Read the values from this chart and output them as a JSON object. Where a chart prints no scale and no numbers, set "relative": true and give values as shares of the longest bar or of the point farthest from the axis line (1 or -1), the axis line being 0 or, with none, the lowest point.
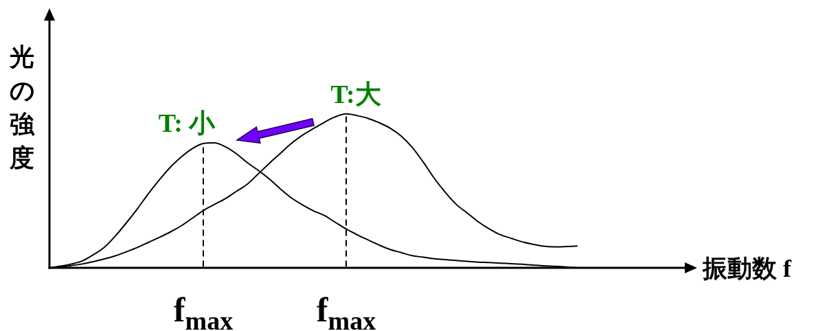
{
  "chart_data": {
    "type": "line",
    "relative": true,
    "ylabel": "光の強度",
    "xlabel": "振動数 f",
    "grid": "x",
    "categories": [
      null,
      null,
      null,
      null,
      null,
      null,
      null,
      null,
      null,
      null,
      null,
      null,
      null,
      null,
      "f$_{max}$",
      null,
      null,
      null,
      null,
      null,
      null,
      null,
      null,
      null,
      null,
      null,
      null,
      "f$_{max}$",
      null,
      null,
      null,
      null,
      null,
      null,
      null,
      null,
      null,
      null,
      null,
      null,
      null,
      null,
      null,
      null,
      null,
      null,
      null,
      null,
      null
    ],
    "series": [
      {
        "name": "T: 小",
        "color": "#000000",
        "values": [
          0,
          0.011,
          0.025,
          0.045,
          0.085,
          0.134,
          0.207,
          0.292,
          0.383,
          0.481,
          0.571,
          0.653,
          0.72,
          0.774,
          0.807,
          0.811,
          0.786,
          0.741,
          0.683,
          0.633,
          0.577,
          0.513,
          0.455,
          0.41,
          0.371,
          0.34,
          0.296,
          0.252,
          0.215,
          0.181,
          0.148,
          0.119,
          0.099,
          0.079,
          0.069,
          0.059,
          0.053,
          0.048,
          0.042,
          0.037,
          0.034,
          0.03,
          0.027,
          0.023,
          0.018,
          0.013,
          0.01,
          0.006,
          0
        ]
      },
      {
        "name": "T:大",
        "color": "#000000",
        "values": [
          0,
          0.006,
          0.015,
          0.025,
          0.04,
          0.058,
          0.078,
          0.104,
          0.132,
          0.165,
          0.198,
          0.233,
          0.273,
          0.322,
          0.372,
          0.411,
          0.449,
          0.496,
          0.543,
          0.61,
          0.678,
          0.742,
          0.807,
          0.86,
          0.903,
          0.944,
          0.98,
          1,
          0.988,
          0.97,
          0.942,
          0.907,
          0.856,
          0.783,
          0.688,
          0.583,
          0.492,
          0.413,
          0.357,
          0.3,
          0.254,
          0.216,
          0.192,
          0.169,
          0.153,
          0.14,
          0.136,
          0.138,
          0.141
        ]
      }
    ]
  }
}
